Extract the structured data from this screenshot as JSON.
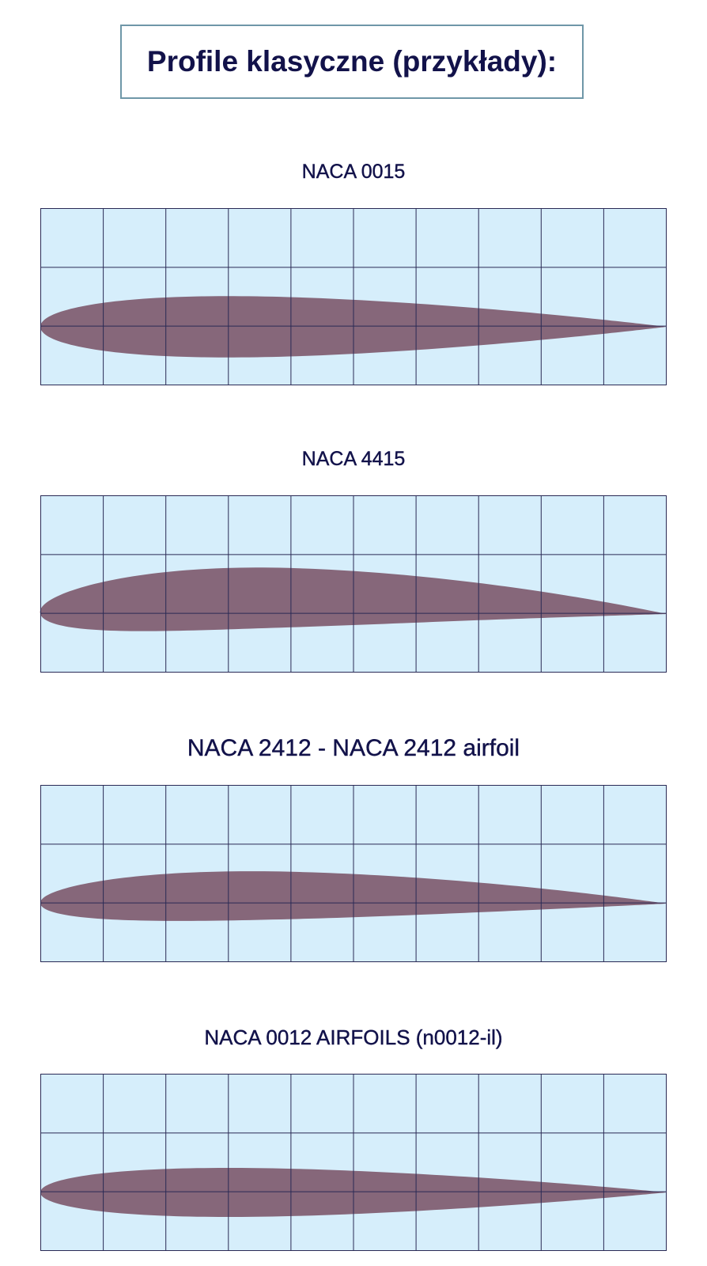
{
  "header": {
    "title": "Profile klasyczne (przykłady):"
  },
  "colors": {
    "grid_fill": "#d6eefb",
    "grid_line": "#2a2a55",
    "airfoil_fill": "#86677a",
    "title_color": "#12124a",
    "title_border": "#6f97a8"
  },
  "airfoils": [
    {
      "label": "NACA 0015",
      "max_camber": 0,
      "camber_position": 0,
      "thickness": 0.15
    },
    {
      "label": "NACA 4415",
      "max_camber": 0.04,
      "camber_position": 0.4,
      "thickness": 0.15
    },
    {
      "label": "NACA 2412 - NACA 2412 airfoil",
      "max_camber": 0.02,
      "camber_position": 0.4,
      "thickness": 0.12
    },
    {
      "label": "NACA 0012 AIRFOILS (n0012-il)",
      "max_camber": 0,
      "camber_position": 0,
      "thickness": 0.12
    }
  ]
}
